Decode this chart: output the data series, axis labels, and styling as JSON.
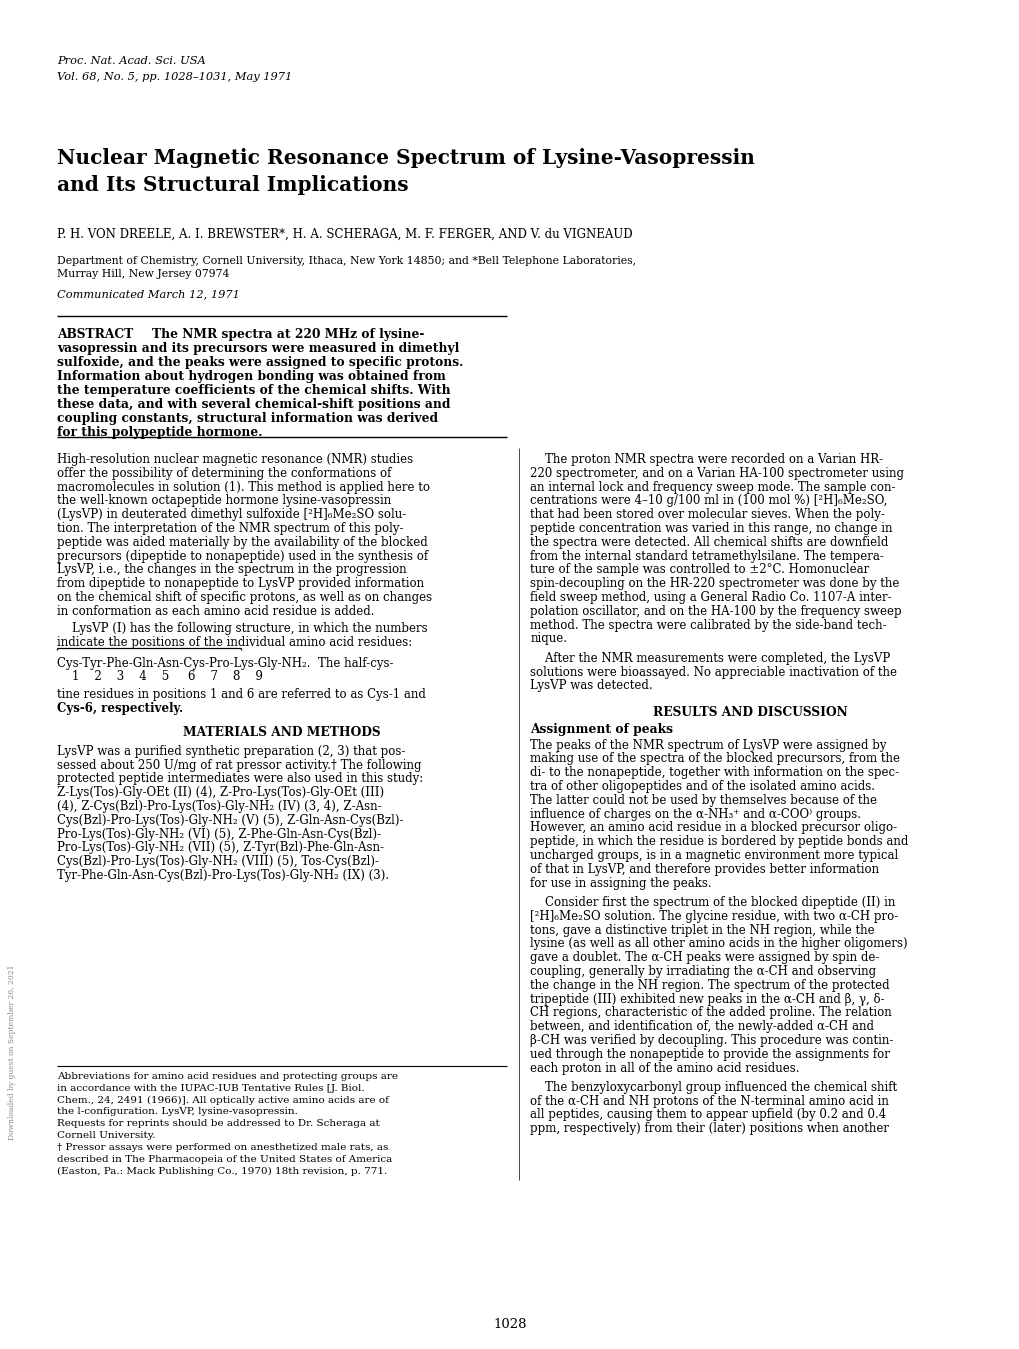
{
  "bg_color": "#ffffff",
  "journal_line1": "Proc. Nat. Acad. Sci. USA",
  "journal_line2": "Vol. 68, No. 5, pp. 1028–1031, May 1971",
  "title_line1": "Nuclear Magnetic Resonance Spectrum of Lysine-Vasopressin",
  "title_line2": "and Its Structural Implications",
  "authors": "P. H. VON DREELE, A. I. BREWSTER*, H. A. SCHERAGA, M. F. FERGER, AND V. du VIGNEAUD",
  "affil1": "Department of Chemistry, Cornell University, Ithaca, New York 14850; and *Bell Telephone Laboratories,",
  "affil2": "Murray Hill, New Jersey 07974",
  "communicated": "Communicated March 12, 1971",
  "page_number": "1028",
  "watermark": "Downloaded by guest on September 26, 2021"
}
